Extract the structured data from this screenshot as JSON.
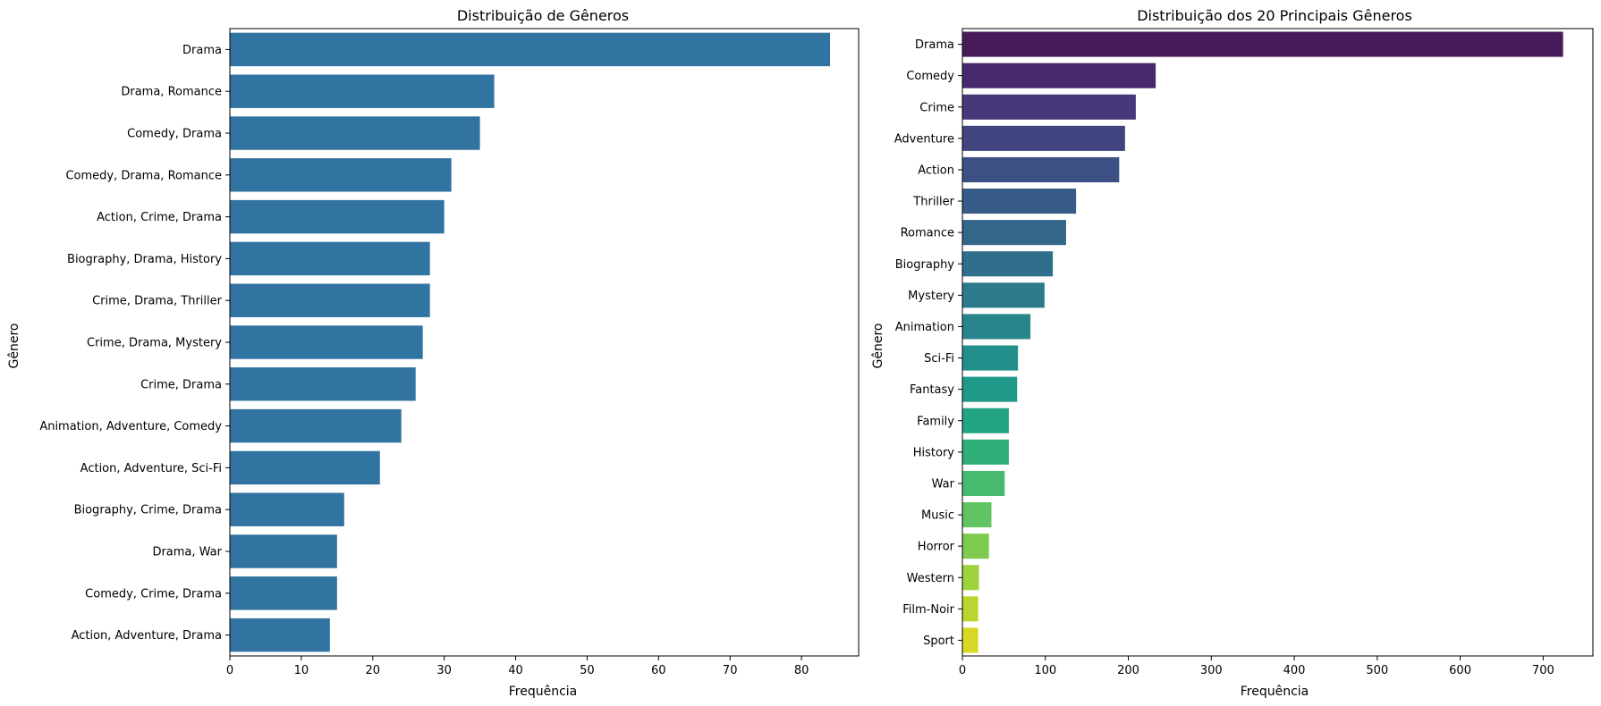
{
  "chart_data": [
    {
      "type": "bar",
      "orientation": "horizontal",
      "title": "Distribuição de Gêneros",
      "xlabel": "Frequência",
      "ylabel": "Gênero",
      "xlim": [
        0,
        88
      ],
      "xticks": [
        0,
        10,
        20,
        30,
        40,
        50,
        60,
        70,
        80
      ],
      "grid": false,
      "color": "#3274a1",
      "categories": [
        "Drama",
        "Drama, Romance",
        "Comedy, Drama",
        "Comedy, Drama, Romance",
        "Action, Crime, Drama",
        "Biography, Drama, History",
        "Crime, Drama, Thriller",
        "Crime, Drama, Mystery",
        "Crime, Drama",
        "Animation, Adventure, Comedy",
        "Action, Adventure, Sci-Fi",
        "Biography, Crime, Drama",
        "Drama, War",
        "Comedy, Crime, Drama",
        "Action, Adventure, Drama"
      ],
      "values": [
        84,
        37,
        35,
        31,
        30,
        28,
        28,
        27,
        26,
        24,
        21,
        16,
        15,
        15,
        14
      ]
    },
    {
      "type": "bar",
      "orientation": "horizontal",
      "title": "Distribuição dos 20 Principais Gêneros",
      "xlabel": "Frequência",
      "ylabel": "Gênero",
      "xlim": [
        0,
        760
      ],
      "xticks": [
        0,
        100,
        200,
        300,
        400,
        500,
        600,
        700
      ],
      "grid": false,
      "palette": "viridis",
      "categories": [
        "Drama",
        "Comedy",
        "Crime",
        "Adventure",
        "Action",
        "Thriller",
        "Romance",
        "Biography",
        "Mystery",
        "Animation",
        "Sci-Fi",
        "Fantasy",
        "Family",
        "History",
        "War",
        "Music",
        "Horror",
        "Western",
        "Film-Noir",
        "Sport"
      ],
      "values": [
        724,
        233,
        209,
        196,
        189,
        137,
        125,
        109,
        99,
        82,
        67,
        66,
        56,
        56,
        51,
        35,
        32,
        20,
        19,
        19
      ],
      "colors": [
        "#471b5a",
        "#482a6c",
        "#463879",
        "#42447f",
        "#3c5084",
        "#375c88",
        "#34668a",
        "#306f8b",
        "#2c7a8c",
        "#28858c",
        "#238f8b",
        "#1f9a88",
        "#23a583",
        "#31af7b",
        "#47ba70",
        "#61c361",
        "#7ecb4f",
        "#9dd33c",
        "#bcd52e",
        "#d9d827"
      ]
    }
  ]
}
